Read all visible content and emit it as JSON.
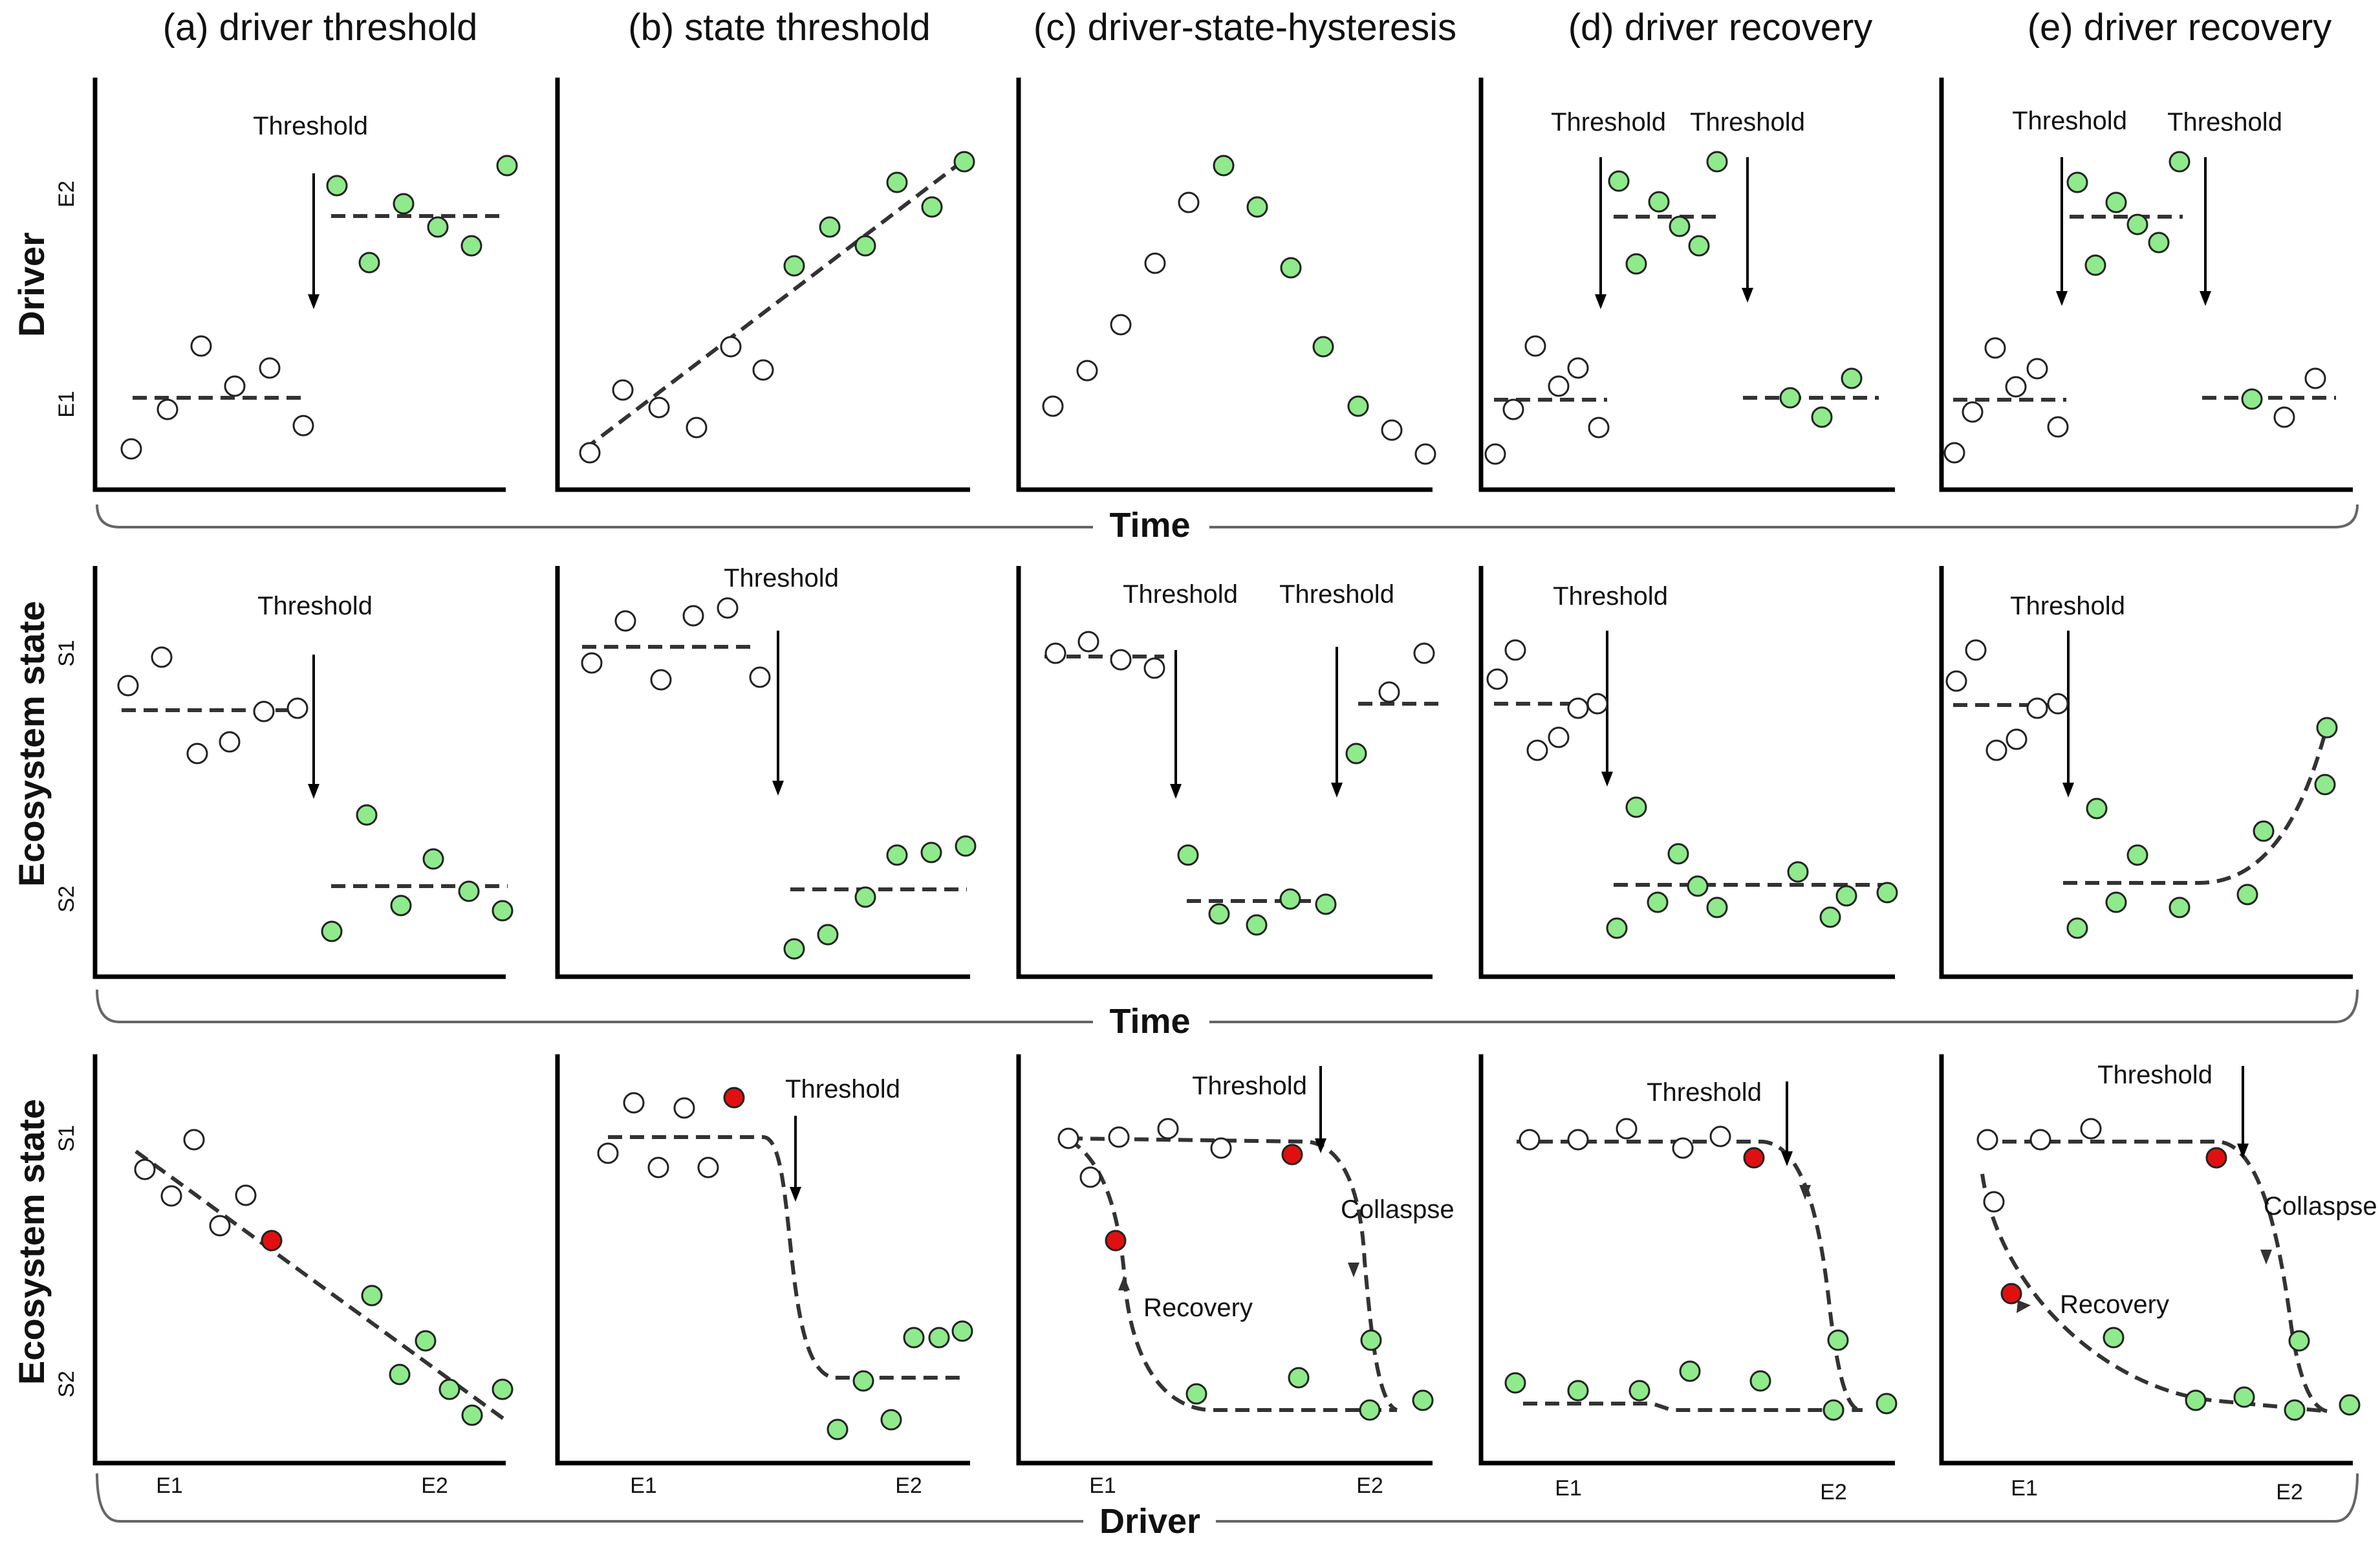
{
  "columns": [
    {
      "title": "(a) driver threshold"
    },
    {
      "title": "(b) state threshold"
    },
    {
      "title": "(c) driver-state-hysteresis"
    },
    {
      "title": "(d) driver recovery"
    },
    {
      "title": "(e) driver recovery"
    }
  ],
  "rows": {
    "driver": {
      "label": "Driver",
      "tick_high": "E2",
      "tick_low": "E1",
      "xaxis": "Time"
    },
    "state": {
      "label": "Ecosystem state",
      "tick_high": "S1",
      "tick_low": "S2",
      "xaxis": "Time"
    },
    "response": {
      "label": "Ecosystem state",
      "tick_high": "S1",
      "tick_low": "S2",
      "xaxis": "Driver",
      "xtick_low": "E1",
      "xtick_high": "E2"
    }
  },
  "annotations": {
    "threshold": "Threshold",
    "collapse": "Collaspse",
    "recovery": "Recovery"
  },
  "colors": {
    "open_point": "#ffffff",
    "green_point": "#8fea8b",
    "red_point": "#e01010",
    "dash": "#333333"
  }
}
